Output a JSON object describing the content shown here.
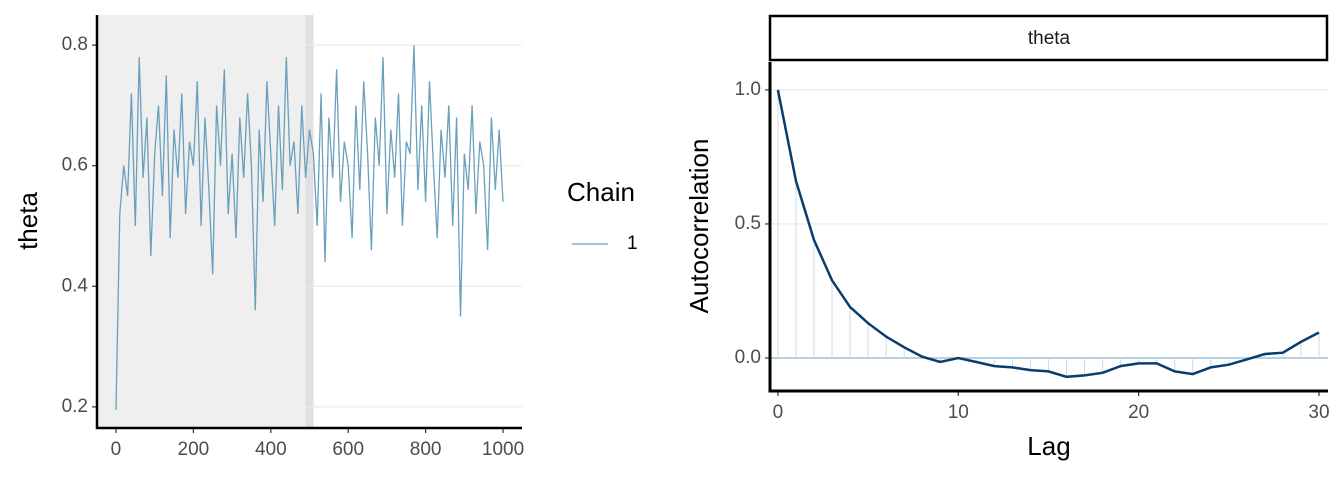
{
  "chart_data": [
    {
      "type": "line",
      "ylabel": "theta",
      "legend_title": "Chain",
      "x": [
        0,
        10,
        20,
        30,
        40,
        50,
        60,
        70,
        80,
        90,
        100,
        110,
        120,
        130,
        140,
        150,
        160,
        170,
        180,
        190,
        200,
        210,
        220,
        230,
        240,
        250,
        260,
        270,
        280,
        290,
        300,
        310,
        320,
        330,
        340,
        350,
        360,
        370,
        380,
        390,
        400,
        410,
        420,
        430,
        440,
        450,
        460,
        470,
        480,
        490,
        500,
        510,
        520,
        530,
        540,
        550,
        560,
        570,
        580,
        590,
        600,
        610,
        620,
        630,
        640,
        650,
        660,
        670,
        680,
        690,
        700,
        710,
        720,
        730,
        740,
        750,
        760,
        770,
        780,
        790,
        800,
        810,
        820,
        830,
        840,
        850,
        860,
        870,
        880,
        890,
        900,
        910,
        920,
        930,
        940,
        950,
        960,
        970,
        980,
        990,
        1000
      ],
      "series": [
        {
          "name": "1",
          "color": "#6a9fbd",
          "values": [
            0.195,
            0.52,
            0.6,
            0.55,
            0.72,
            0.5,
            0.78,
            0.58,
            0.68,
            0.45,
            0.62,
            0.7,
            0.55,
            0.75,
            0.48,
            0.66,
            0.58,
            0.72,
            0.52,
            0.64,
            0.6,
            0.74,
            0.5,
            0.68,
            0.56,
            0.42,
            0.7,
            0.6,
            0.76,
            0.52,
            0.62,
            0.48,
            0.68,
            0.58,
            0.72,
            0.6,
            0.36,
            0.66,
            0.54,
            0.74,
            0.62,
            0.5,
            0.7,
            0.56,
            0.78,
            0.6,
            0.64,
            0.52,
            0.7,
            0.58,
            0.66,
            0.62,
            0.5,
            0.72,
            0.44,
            0.68,
            0.58,
            0.76,
            0.54,
            0.64,
            0.6,
            0.48,
            0.7,
            0.56,
            0.74,
            0.62,
            0.46,
            0.68,
            0.6,
            0.78,
            0.52,
            0.66,
            0.58,
            0.72,
            0.5,
            0.64,
            0.62,
            0.8,
            0.56,
            0.7,
            0.54,
            0.74,
            0.6,
            0.48,
            0.66,
            0.58,
            0.7,
            0.5,
            0.68,
            0.35,
            0.62,
            0.56,
            0.7,
            0.52,
            0.64,
            0.6,
            0.46,
            0.68,
            0.56,
            0.66,
            0.54
          ]
        }
      ],
      "shade_xmax": 500,
      "xlim": [
        -49,
        1049
      ],
      "xticks": [
        0,
        200,
        400,
        600,
        800,
        1000
      ],
      "ylim": [
        0.165,
        0.85
      ],
      "yticks": [
        0.2,
        0.4,
        0.6,
        0.8
      ],
      "grid": true
    },
    {
      "type": "acf",
      "facet": "theta",
      "xlabel": "Lag",
      "ylabel": "Autocorrelation",
      "x": [
        0,
        1,
        2,
        3,
        4,
        5,
        6,
        7,
        8,
        9,
        10,
        11,
        12,
        13,
        14,
        15,
        16,
        17,
        18,
        19,
        20,
        21,
        22,
        23,
        24,
        25,
        26,
        27,
        28,
        29,
        30
      ],
      "series": [
        {
          "name": "theta",
          "color": "#0b3c6e",
          "values": [
            1.0,
            0.66,
            0.44,
            0.29,
            0.19,
            0.13,
            0.08,
            0.04,
            0.005,
            -0.015,
            0.0,
            -0.015,
            -0.03,
            -0.035,
            -0.045,
            -0.05,
            -0.07,
            -0.065,
            -0.055,
            -0.03,
            -0.02,
            -0.02,
            -0.05,
            -0.06,
            -0.035,
            -0.025,
            -0.005,
            0.015,
            0.02,
            0.06,
            0.095
          ]
        }
      ],
      "xlim": [
        -0.44,
        30.5
      ],
      "xticks": [
        0,
        10,
        20,
        30
      ],
      "ylim": [
        -0.123,
        1.104
      ],
      "yticks": [
        {
          "value": 0,
          "label": "0.0"
        },
        {
          "value": 0.5,
          "label": "0.5"
        },
        {
          "value": 1,
          "label": "1.0"
        }
      ],
      "grid": true
    }
  ]
}
